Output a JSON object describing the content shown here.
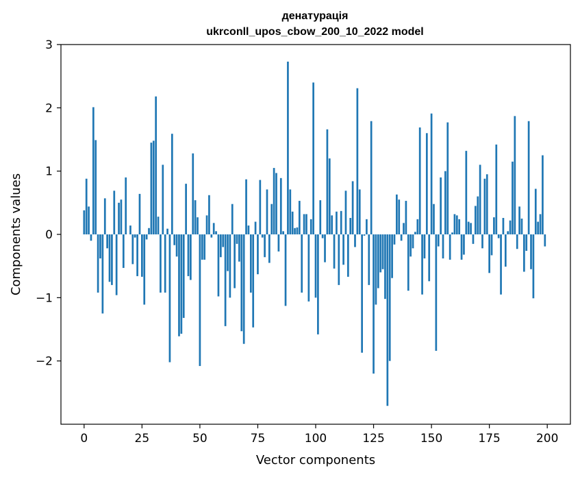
{
  "chart_data": {
    "type": "bar",
    "title": "денатурація",
    "subtitle": "ukrconll_upos_cbow_200_10_2022 model",
    "xlabel": "Vector components",
    "ylabel": "Components values",
    "xlim": [
      -10,
      210
    ],
    "ylim": [
      -3,
      3
    ],
    "xticks": [
      0,
      25,
      50,
      75,
      100,
      125,
      150,
      175,
      200
    ],
    "xtick_labels": [
      "0",
      "25",
      "50",
      "75",
      "100",
      "125",
      "150",
      "175",
      "200"
    ],
    "yticks": [
      3,
      2,
      1,
      0,
      -1,
      -2
    ],
    "ytick_labels": [
      "3",
      "2",
      "1",
      "0",
      "−1",
      "−2"
    ],
    "grid": false,
    "color": "#1f77b4",
    "values": [
      0.38,
      0.88,
      0.44,
      -0.1,
      2.01,
      1.49,
      -0.92,
      -0.38,
      -1.25,
      0.57,
      -0.22,
      -0.75,
      -0.8,
      0.69,
      -0.96,
      0.5,
      0.55,
      -0.53,
      0.9,
      0.0,
      0.14,
      -0.47,
      -0.05,
      -0.66,
      0.64,
      -0.67,
      -1.11,
      -0.08,
      0.1,
      1.45,
      1.48,
      2.18,
      0.28,
      -0.92,
      1.1,
      -0.92,
      0.09,
      -2.02,
      1.59,
      -0.17,
      -0.35,
      -1.61,
      -1.57,
      -1.32,
      0.8,
      -0.66,
      -0.72,
      1.28,
      0.54,
      0.27,
      -2.08,
      -0.4,
      -0.4,
      0.3,
      0.62,
      -0.05,
      0.18,
      0.05,
      -0.98,
      -0.36,
      -0.2,
      -1.45,
      -0.58,
      -1.0,
      0.48,
      -0.85,
      -0.15,
      -0.43,
      -1.53,
      -1.73,
      0.87,
      0.14,
      -0.92,
      -1.47,
      0.2,
      -0.63,
      0.86,
      -0.05,
      -0.36,
      0.71,
      -0.45,
      0.48,
      1.05,
      0.97,
      -0.27,
      0.89,
      0.05,
      -1.13,
      2.73,
      0.71,
      0.36,
      0.1,
      0.11,
      0.53,
      -0.92,
      0.32,
      0.32,
      -1.06,
      0.24,
      2.4,
      -1.0,
      -1.58,
      0.54,
      -0.06,
      -0.44,
      1.66,
      1.2,
      0.3,
      -0.54,
      0.36,
      -0.8,
      0.37,
      -0.48,
      0.69,
      -0.67,
      0.26,
      0.84,
      -0.2,
      2.31,
      0.71,
      -1.87,
      -0.02,
      0.24,
      -0.8,
      1.79,
      -2.2,
      -1.11,
      -0.85,
      -0.6,
      -0.55,
      -1.02,
      -2.71,
      -2.0,
      -0.69,
      -0.16,
      0.63,
      0.55,
      -0.1,
      0.18,
      0.53,
      -0.89,
      -0.35,
      -0.22,
      0.04,
      0.24,
      1.69,
      -0.95,
      -0.38,
      1.6,
      -0.74,
      1.91,
      0.48,
      -1.84,
      -0.19,
      0.9,
      -0.38,
      1.0,
      1.77,
      -0.4,
      0.03,
      0.32,
      0.3,
      0.24,
      -0.4,
      -0.32,
      1.32,
      0.2,
      0.18,
      -0.15,
      0.45,
      0.6,
      1.1,
      -0.22,
      0.88,
      0.95,
      -0.61,
      -0.33,
      0.27,
      1.42,
      -0.06,
      -0.95,
      0.26,
      -0.51,
      0.05,
      0.22,
      1.15,
      1.87,
      -0.23,
      0.44,
      0.25,
      -0.59,
      -0.26,
      1.79,
      -0.55,
      -1.01,
      0.72,
      0.2,
      0.32,
      1.25,
      -0.19
    ]
  }
}
